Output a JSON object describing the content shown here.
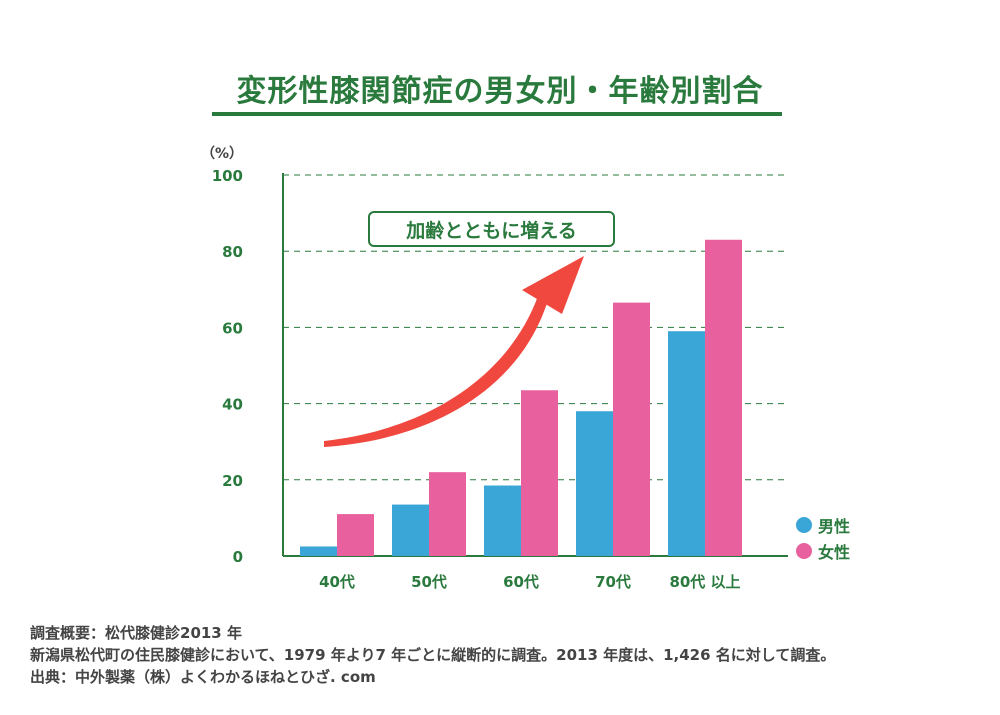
{
  "title": "変形性膝関節症の男女別・年齢別割合",
  "callout": "加齢とともに増える",
  "colors": {
    "male": "#3aa6d8",
    "female": "#e8609d",
    "accent": "#2a7a3e",
    "arrow": "#f0483e"
  },
  "legend": [
    {
      "label": "男性",
      "color": "#3aa6d8"
    },
    {
      "label": "女性",
      "color": "#e8609d"
    }
  ],
  "notes": {
    "line1": "調査概要：松代膝健診2013 年",
    "line2": "新潟県松代町の住民膝健診において、1979 年より7 年ごとに縦断的に調査。2013 年度は、1,426 名に対して調査。",
    "line3": "出典：中外製薬（株）よくわかるほねとひざ. com"
  },
  "chart_data": {
    "type": "bar",
    "title": "変形性膝関節症の男女別・年齢別割合",
    "ylabel": "（%）",
    "xlabel": "",
    "ylim": [
      0,
      100
    ],
    "yticks": [
      0,
      20,
      40,
      60,
      80,
      100
    ],
    "grid": true,
    "legend_position": "bottom-right",
    "categories": [
      "40代",
      "50代",
      "60代",
      "70代",
      "80代 以上"
    ],
    "series": [
      {
        "name": "男性",
        "values": [
          2.5,
          13.5,
          18.5,
          38.0,
          59.0
        ]
      },
      {
        "name": "女性",
        "values": [
          11.0,
          22.0,
          43.5,
          66.5,
          83.0
        ]
      }
    ]
  }
}
